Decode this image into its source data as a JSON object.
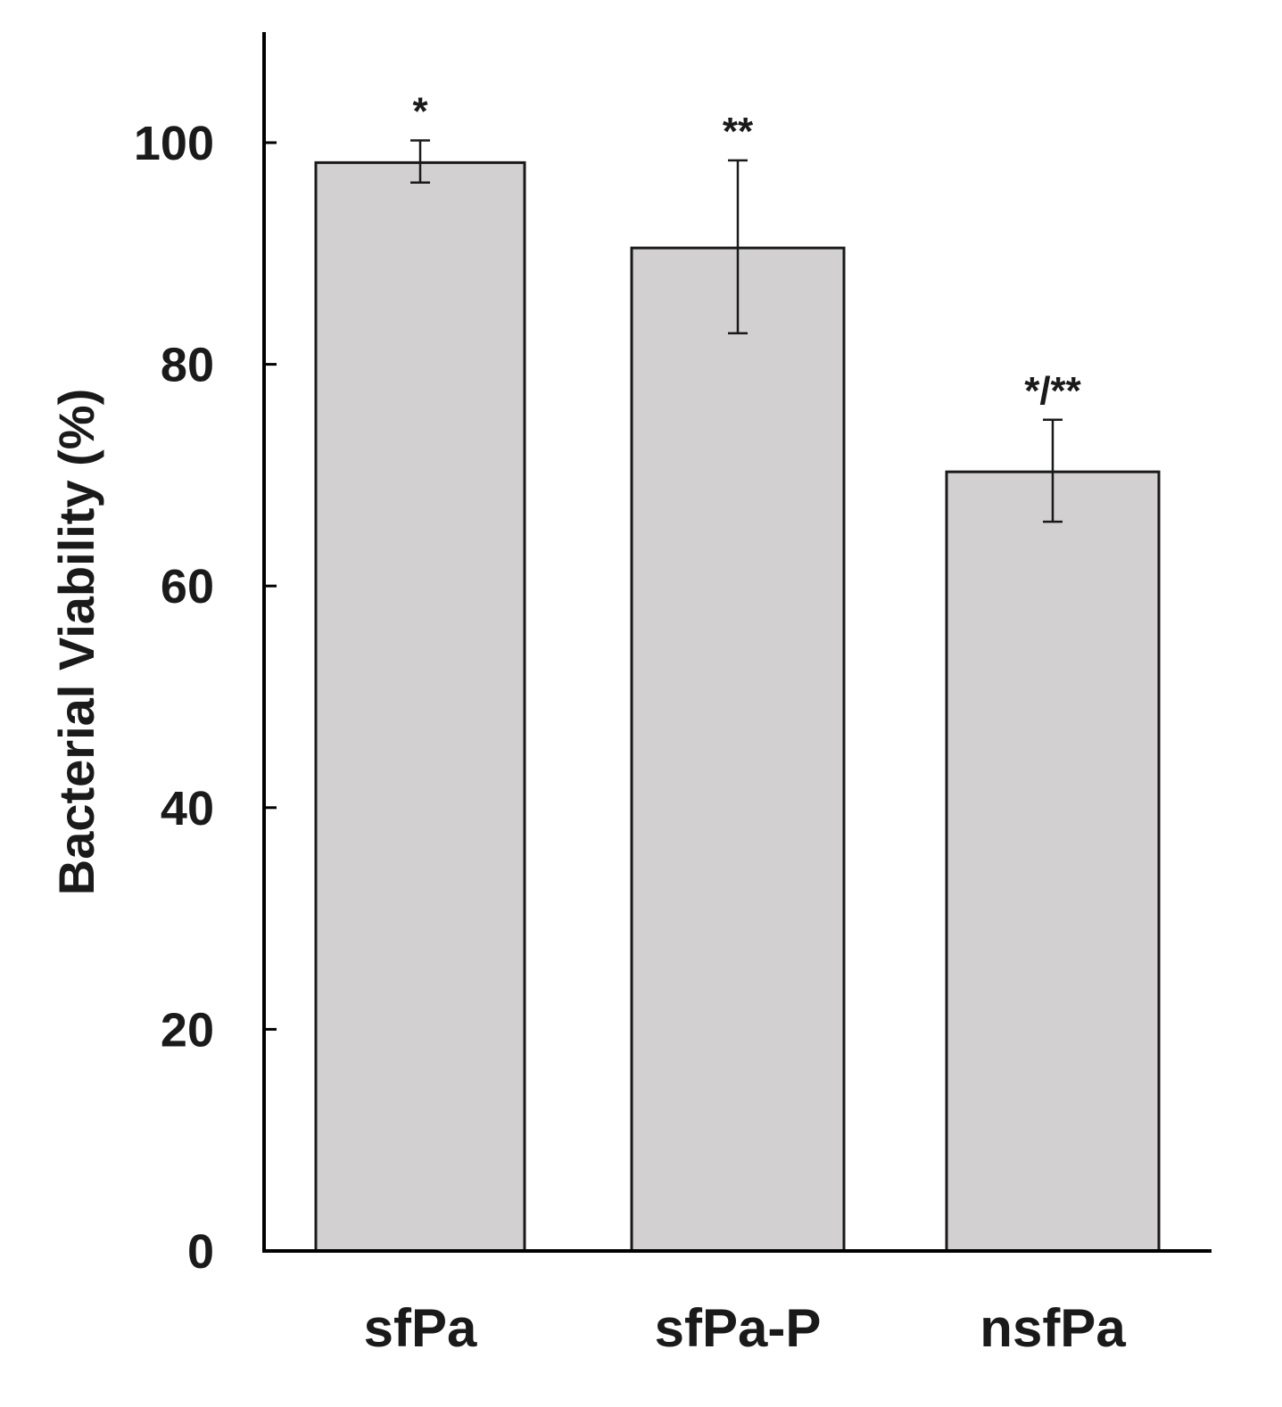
{
  "chart_data": {
    "type": "bar",
    "title": "",
    "xlabel": "",
    "ylabel": "Bacterial Viability (%)",
    "categories": [
      "sfPa",
      "sfPa-P",
      "nsfPa"
    ],
    "values": [
      98.2,
      90.5,
      70.3
    ],
    "error_upper": [
      100.2,
      98.4,
      75.0
    ],
    "error_lower": [
      96.4,
      82.8,
      65.8
    ],
    "annotations": [
      "*",
      "**",
      "*/**"
    ],
    "ylim": [
      0,
      110
    ],
    "yticks": [
      "0",
      "20",
      "40",
      "60",
      "80",
      "100"
    ],
    "grid": false,
    "legend": "none",
    "colors": {
      "bar_fill": "#d3d0d1",
      "bar_stroke": "#1a1a1a",
      "axis": "#000000",
      "text": "#1a1a1a"
    }
  }
}
